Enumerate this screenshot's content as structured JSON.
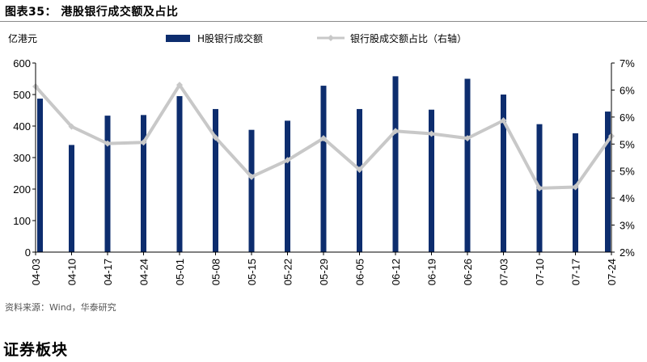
{
  "figure": {
    "title": "图表35：  港股银行成交额及占比",
    "source": "资料来源：Wind，华泰研究"
  },
  "section_title": "证券板块",
  "colors": {
    "bar": "#0d2d6e",
    "line": "#c8c8c8",
    "axis": "#000000"
  },
  "chart_data": {
    "type": "bar+line",
    "categories": [
      "04-03",
      "04-10",
      "04-17",
      "04-24",
      "05-01",
      "05-08",
      "05-15",
      "05-22",
      "05-29",
      "06-05",
      "06-12",
      "06-19",
      "06-26",
      "07-03",
      "07-10",
      "07-17",
      "07-24"
    ],
    "series": [
      {
        "name": "H股银行成交额",
        "type": "bar",
        "axis": "left",
        "values": [
          487,
          340,
          433,
          435,
          495,
          454,
          388,
          417,
          528,
          454,
          558,
          452,
          550,
          500,
          406,
          377,
          446
        ]
      },
      {
        "name": "银行股成交额占比（右轴）",
        "type": "line",
        "axis": "right",
        "values": [
          0.0638,
          0.0532,
          0.0487,
          0.049,
          0.0642,
          0.0503,
          0.0399,
          0.0443,
          0.0501,
          0.0418,
          0.052,
          0.0513,
          0.0501,
          0.0548,
          0.0369,
          0.0372,
          0.0507
        ]
      }
    ],
    "ylabel_left": "亿港元",
    "ylim_left": [
      0,
      600
    ],
    "yticks_left": [
      "0",
      "100",
      "200",
      "300",
      "400",
      "500",
      "600"
    ],
    "ylim_right": [
      0.02,
      0.07
    ],
    "yticks_right": [
      "2%",
      "3%",
      "4%",
      "5%",
      "5%",
      "6%",
      "6%",
      "7%"
    ],
    "legend_position": "top",
    "grid": false
  }
}
